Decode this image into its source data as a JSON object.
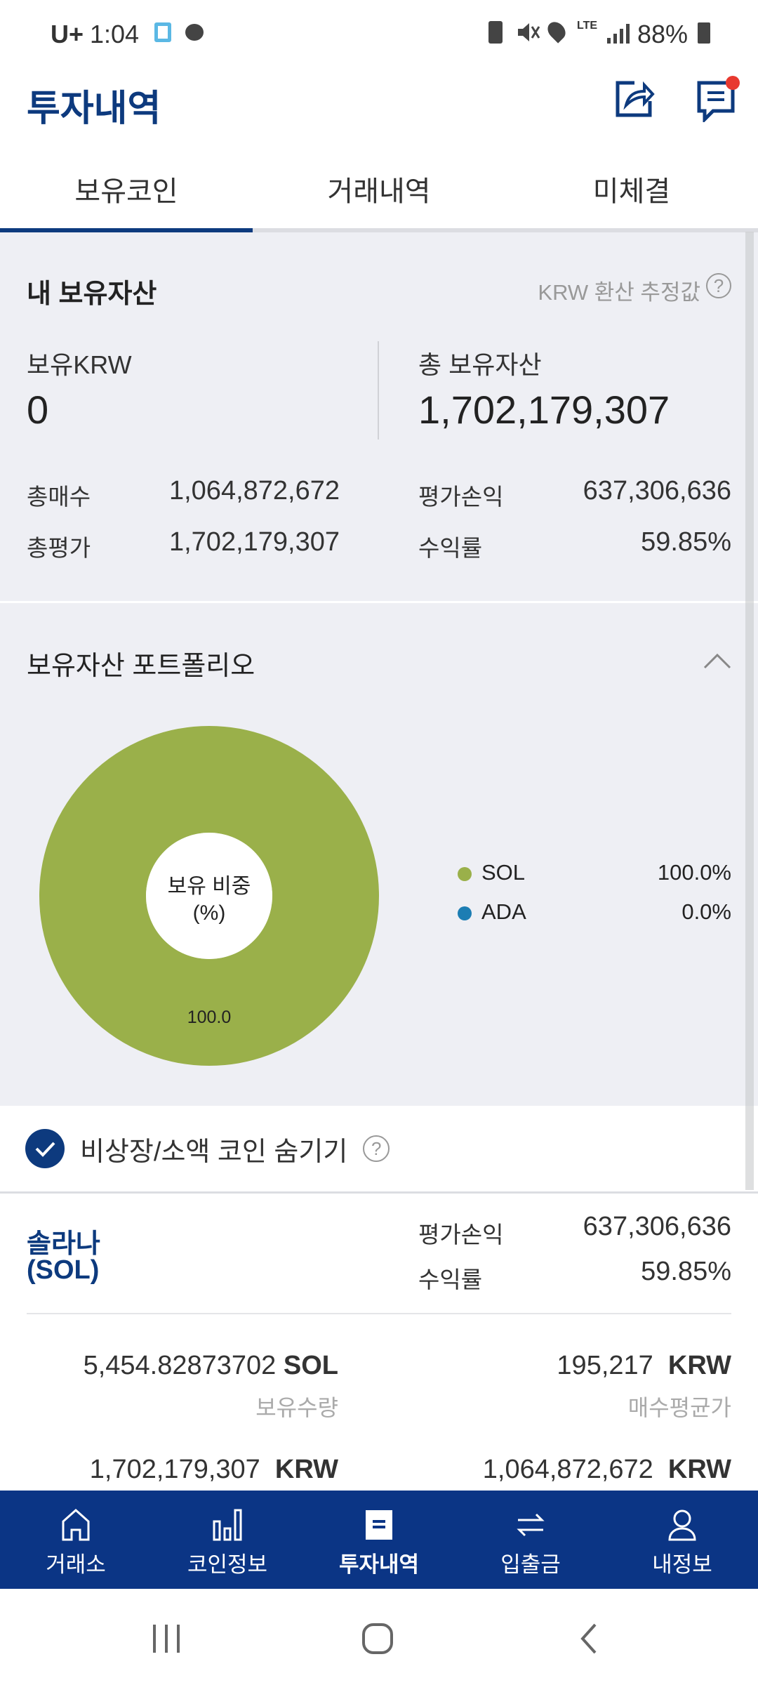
{
  "status_bar": {
    "carrier": "U+",
    "time": "1:04",
    "battery": "88%",
    "network": "LTE"
  },
  "header": {
    "title": "투자내역",
    "share_icon": "share-icon",
    "chat_icon": "chat-icon",
    "notification_dot": true
  },
  "tabs": [
    {
      "label": "보유코인",
      "active": true
    },
    {
      "label": "거래내역",
      "active": false
    },
    {
      "label": "미체결",
      "active": false
    }
  ],
  "assets": {
    "title": "내 보유자산",
    "note": "KRW 환산 추정값",
    "krw_label": "보유KRW",
    "krw_value": "0",
    "total_label": "총 보유자산",
    "total_value": "1,702,179,307",
    "buy_label": "총매수",
    "buy_value": "1,064,872,672",
    "eval_label": "총평가",
    "eval_value": "1,702,179,307",
    "pnl_label": "평가손익",
    "pnl_value": "637,306,636",
    "rate_label": "수익률",
    "rate_value": "59.85%"
  },
  "portfolio": {
    "title": "보유자산 포트폴리오",
    "center_label_1": "보유 비중",
    "center_label_2": "(%)",
    "chart_data": {
      "type": "pie",
      "donut": true,
      "categories": [
        "SOL",
        "ADA"
      ],
      "values": [
        100.0,
        0.0
      ],
      "colors": [
        "#9ab04a",
        "#1c7db3"
      ],
      "data_labels": [
        "100.0"
      ],
      "legend": [
        {
          "name": "SOL",
          "value": "100.0%"
        },
        {
          "name": "ADA",
          "value": "0.0%"
        }
      ],
      "legend_placement": "right"
    }
  },
  "filter": {
    "label": "비상장/소액 코인 숨기기",
    "checked": true
  },
  "coin": {
    "name": "솔라나",
    "symbol": "(SOL)",
    "pnl_label": "평가손익",
    "pnl_value": "637,306,636",
    "rate_label": "수익률",
    "rate_value": "59.85%",
    "qty_value": "5,454.82873702",
    "qty_unit": "SOL",
    "qty_label": "보유수량",
    "avg_value": "195,217",
    "avg_unit": "KRW",
    "avg_label": "매수평균가",
    "eval_value": "1,702,179,307",
    "eval_unit": "KRW",
    "buy_value": "1,064,872,672",
    "buy_unit": "KRW"
  },
  "bottom_nav": [
    {
      "label": "거래소"
    },
    {
      "label": "코인정보"
    },
    {
      "label": "투자내역",
      "active": true
    },
    {
      "label": "입출금"
    },
    {
      "label": "내정보"
    }
  ]
}
